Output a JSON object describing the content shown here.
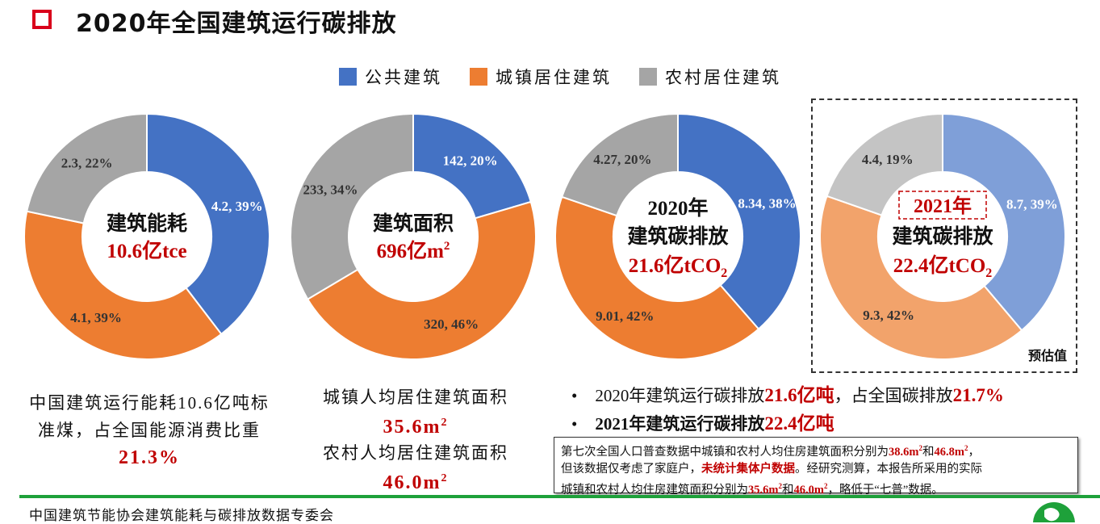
{
  "title": "2020年全国建筑运行碳排放",
  "legend": [
    {
      "label": "公共建筑",
      "color": "#4472C4"
    },
    {
      "label": "城镇居住建筑",
      "color": "#ED7D31"
    },
    {
      "label": "农村居住建筑",
      "color": "#A5A5A5"
    }
  ],
  "chart_data": [
    {
      "type": "pie",
      "categories": [
        "公共建筑",
        "城镇居住建筑",
        "农村居住建筑"
      ],
      "values": [
        4.2,
        4.1,
        2.3
      ],
      "percents": [
        "39%",
        "39%",
        "22%"
      ],
      "center_title": "建筑能耗",
      "center_value": "10.6亿tce",
      "colors": [
        "#4472C4",
        "#ED7D31",
        "#A5A5A5"
      ]
    },
    {
      "type": "pie",
      "categories": [
        "公共建筑",
        "城镇居住建筑",
        "农村居住建筑"
      ],
      "values": [
        142,
        320,
        233
      ],
      "percents": [
        "20%",
        "46%",
        "34%"
      ],
      "center_title": "建筑面积",
      "center_value": "696亿m",
      "center_sup": "2",
      "colors": [
        "#4472C4",
        "#ED7D31",
        "#A5A5A5"
      ]
    },
    {
      "type": "pie",
      "categories": [
        "公共建筑",
        "城镇居住建筑",
        "农村居住建筑"
      ],
      "values": [
        8.34,
        9.01,
        4.27
      ],
      "percents": [
        "38%",
        "42%",
        "20%"
      ],
      "center_year": "2020年",
      "center_title": "建筑碳排放",
      "center_value": "21.6亿tCO",
      "center_sub": "2",
      "colors": [
        "#4472C4",
        "#ED7D31",
        "#A5A5A5"
      ]
    },
    {
      "type": "pie",
      "categories": [
        "公共建筑",
        "城镇居住建筑",
        "农村居住建筑"
      ],
      "values": [
        8.7,
        9.3,
        4.4
      ],
      "percents": [
        "39%",
        "42%",
        "19%"
      ],
      "center_year": "2021年",
      "center_title": "建筑碳排放",
      "center_value": "22.4亿tCO",
      "center_sub": "2",
      "note": "预估值",
      "colors": [
        "#7F9FD8",
        "#F2A36B",
        "#C4C4C4"
      ]
    }
  ],
  "captions": {
    "energy_line1": "中国建筑运行能耗10.6亿吨标",
    "energy_line2": "准煤，占全国能源消费比重",
    "energy_pct": "21.3%",
    "urban_label": "城镇人均居住建筑面积",
    "urban_value": "35.6m",
    "rural_label": "农村人均居住建筑面积",
    "rural_value": "46.0m",
    "sup": "2"
  },
  "bullets": [
    {
      "a": "2020年建筑运行碳排放",
      "b": "21.6亿吨",
      "c": "，占全国碳排放",
      "d": "21.7%"
    },
    {
      "a": "2021年建筑运行碳排放",
      "b": "22.4亿吨"
    }
  ],
  "note": {
    "l1a": "第七次全国人口普查数据中城镇和农村人均住房建筑面积分别为",
    "l1b": "38.6m",
    "l1c": "和",
    "l1d": "46.8m",
    "l1e": "，",
    "l2a": "但该数据仅考虑了家庭户，",
    "l2b": "未统计集体户数据",
    "l2c": "。经研究测算，本报告所采用的实际",
    "l3a": "城镇和农村人均住房建筑面积分别为",
    "l3b": "35.6m",
    "l3c": "和",
    "l3d": "46.0m",
    "l3e": "，略低于“七普”数据。"
  },
  "footer": "中国建筑节能协会建筑能耗与碳排放数据专委会"
}
